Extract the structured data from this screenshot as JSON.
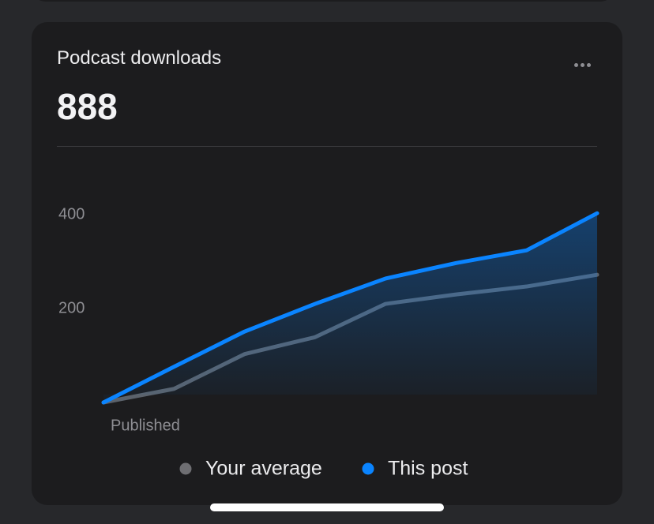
{
  "card": {
    "title": "Podcast downloads",
    "total": 888
  },
  "chart_data": {
    "type": "line",
    "categories": [
      "Published",
      null,
      null,
      null,
      null,
      null,
      null,
      null
    ],
    "series": [
      {
        "name": "Your average",
        "color": "#5b626b",
        "values": [
          0,
          29,
          103,
          139,
          210,
          230,
          247,
          272
        ]
      },
      {
        "name": "This post",
        "color": "#0a84ff",
        "values": [
          0,
          76,
          151,
          210,
          264,
          297,
          324,
          403
        ]
      }
    ],
    "ylim": [
      0,
      400
    ],
    "yticks": [
      200,
      400
    ]
  }
}
